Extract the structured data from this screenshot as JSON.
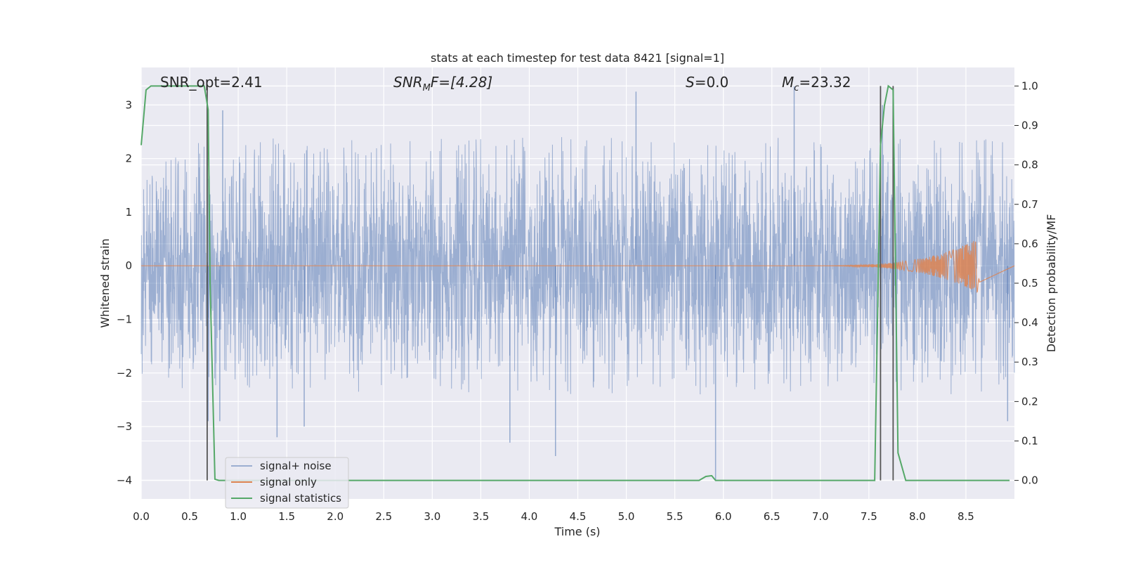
{
  "chart_data": {
    "type": "line",
    "title": "stats at each timestep for test data 8421 [signal=1]",
    "xlabel": "Time (s)",
    "ylabel_left": "Whitened strain",
    "ylabel_right": "Detection probability/MF",
    "xlim": [
      0,
      9.0
    ],
    "ylim_left": [
      -4.35,
      3.7
    ],
    "ylim_right": [
      -0.047,
      1.047
    ],
    "x_ticks": [
      0.0,
      0.5,
      1.0,
      1.5,
      2.0,
      2.5,
      3.0,
      3.5,
      4.0,
      4.5,
      5.0,
      5.5,
      6.0,
      6.5,
      7.0,
      7.5,
      8.0,
      8.5
    ],
    "x_tick_labels": [
      "0.0",
      "0.5",
      "1.0",
      "1.5",
      "2.0",
      "2.5",
      "3.0",
      "3.5",
      "4.0",
      "4.5",
      "5.0",
      "5.5",
      "6.0",
      "6.5",
      "7.0",
      "7.5",
      "8.0",
      "8.5"
    ],
    "y_left_ticks": [
      -4,
      -3,
      -2,
      -1,
      0,
      1,
      2,
      3
    ],
    "y_left_tick_labels": [
      "−4",
      "−3",
      "−2",
      "−1",
      "0",
      "1",
      "2",
      "3"
    ],
    "y_right_ticks": [
      0.0,
      0.1,
      0.2,
      0.3,
      0.4,
      0.5,
      0.6,
      0.7,
      0.8,
      0.9,
      1.0
    ],
    "y_right_tick_labels": [
      "0.0",
      "0.1",
      "0.2",
      "0.3",
      "0.4",
      "0.5",
      "0.6",
      "0.7",
      "0.8",
      "0.9",
      "1.0"
    ],
    "grid": true,
    "legend_position": "lower-left",
    "colors": {
      "background": "#eaeaf2",
      "grid": "#ffffff",
      "noise": "#4c72b0",
      "signal": "#dd8452",
      "stats": "#55a868",
      "vline": "#555555"
    },
    "annotations": {
      "snr_opt": "SNR_opt=2.41",
      "snr_mf_prefix": "SNR",
      "snr_mf_sub": "M",
      "snr_mf_suffix": "F=[4.28]",
      "s_prefix": "S",
      "s_suffix": "=0.0",
      "mc_prefix": "M",
      "mc_sub": "c",
      "mc_suffix": "=23.32"
    },
    "series": [
      {
        "name": "signal+ noise",
        "axis": "left",
        "description_range": [
          -2.0,
          2.3
        ],
        "notable_spikes": [
          {
            "x": 0.84,
            "y": 2.9
          },
          {
            "x": 1.4,
            "y": -3.2
          },
          {
            "x": 1.68,
            "y": -3.0
          },
          {
            "x": 3.8,
            "y": -3.3
          },
          {
            "x": 4.27,
            "y": -3.55
          },
          {
            "x": 5.1,
            "y": 3.25
          },
          {
            "x": 5.92,
            "y": -4.0
          },
          {
            "x": 6.73,
            "y": 3.35
          },
          {
            "x": 7.64,
            "y": 3.0
          },
          {
            "x": 8.93,
            "y": -2.9
          },
          {
            "x": 0.69,
            "y": -2.9
          },
          {
            "x": 0.81,
            "y": -2.9
          }
        ]
      },
      {
        "name": "signal only",
        "axis": "left",
        "chirp_start": 6.5,
        "chirp_end": 8.64,
        "peak_amplitude": 0.52
      },
      {
        "name": "signal statistics",
        "axis": "right",
        "x": [
          0.0,
          0.05,
          0.1,
          0.6,
          0.65,
          0.69,
          0.71,
          0.76,
          0.8,
          5.75,
          5.82,
          5.88,
          5.92,
          7.56,
          7.62,
          7.66,
          7.7,
          7.75,
          7.8,
          7.88,
          8.95
        ],
        "y": [
          0.85,
          0.99,
          1.0,
          1.0,
          1.0,
          0.94,
          0.5,
          0.003,
          0.0,
          0.0,
          0.01,
          0.012,
          0.0,
          0.0,
          0.85,
          0.95,
          1.0,
          0.99,
          0.07,
          0.0,
          0.0
        ]
      }
    ],
    "vertical_lines": [
      0.68,
      7.62,
      7.75
    ]
  }
}
